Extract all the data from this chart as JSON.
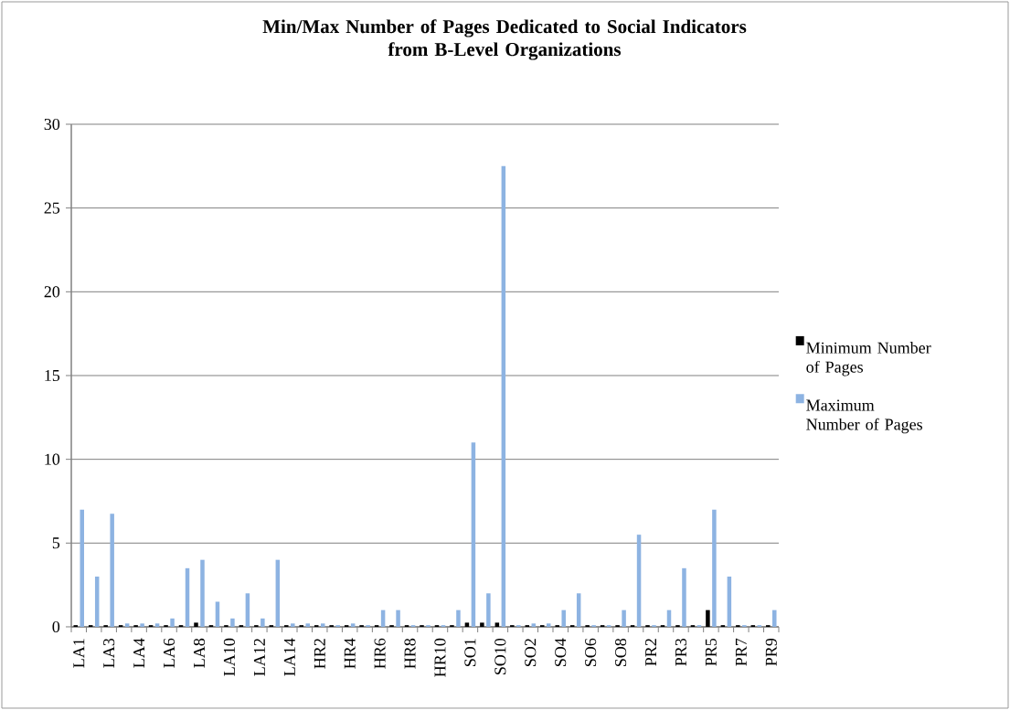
{
  "chart_data": {
    "type": "bar",
    "title": "Min/Max Number of Pages Dedicated to Social Indicators\nfrom B-Level Organizations",
    "categories": [
      "LA1",
      null,
      "LA3",
      null,
      "LA4",
      null,
      "LA6",
      null,
      "LA8",
      null,
      "LA10",
      null,
      "LA12",
      null,
      "LA14",
      null,
      "HR2",
      null,
      "HR4",
      null,
      "HR6",
      null,
      "HR8",
      null,
      "HR10",
      null,
      "SO1",
      null,
      "SO10",
      null,
      "SO2",
      null,
      "SO4",
      null,
      "SO6",
      null,
      "SO8",
      null,
      "PR2",
      null,
      "PR3",
      null,
      "PR5",
      null,
      "PR7",
      null,
      "PR9"
    ],
    "series": [
      {
        "name": "Minimum Number of Pages",
        "color": "#000000",
        "values": [
          0.1,
          0.1,
          0.1,
          0.1,
          0.1,
          0.1,
          0.1,
          0.1,
          0.25,
          0.1,
          0.1,
          0.1,
          0.1,
          0.1,
          0.1,
          0.1,
          0.1,
          0.1,
          0.1,
          0.1,
          0.1,
          0.1,
          0.1,
          0.1,
          0.1,
          0.1,
          0.25,
          0.25,
          0.25,
          0.1,
          0.1,
          0.1,
          0.1,
          0.1,
          0.1,
          0.1,
          0.1,
          0.1,
          0.1,
          0.1,
          0.1,
          0.1,
          1,
          0.1,
          0.1,
          0.1,
          0.1
        ]
      },
      {
        "name": "Maximum Number of Pages",
        "color": "#8db3e2",
        "values": [
          7,
          3,
          6.75,
          0.2,
          0.2,
          0.2,
          0.5,
          3.5,
          4,
          1.5,
          0.5,
          2,
          0.5,
          4,
          0.2,
          0.2,
          0.2,
          0.1,
          0.2,
          0.1,
          1,
          1,
          0.1,
          0.1,
          0.1,
          1,
          11,
          2,
          27.5,
          0.1,
          0.2,
          0.2,
          1,
          2,
          0.1,
          0.1,
          1,
          5.5,
          0.1,
          1,
          3.5,
          0.1,
          7,
          3,
          0.1,
          0.1,
          1
        ]
      }
    ],
    "ylim": [
      0,
      30
    ],
    "yticks": [
      0,
      5,
      10,
      15,
      20,
      25,
      30
    ],
    "grid": "y",
    "legend": "right"
  }
}
